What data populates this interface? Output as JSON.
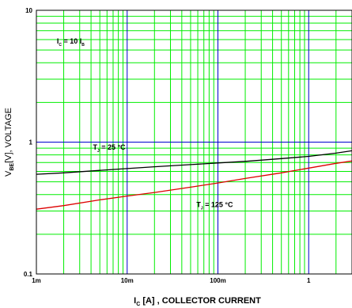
{
  "chart_data": {
    "type": "line",
    "x_scale": "log",
    "y_scale": "log",
    "xlim": [
      0.001,
      3
    ],
    "ylim": [
      0.1,
      10
    ],
    "grid": true,
    "legend": "none",
    "colors": {
      "minor_grid": "#00ee00",
      "major_grid": "#0000cc",
      "frame": "#000000"
    },
    "x_ticks": [
      {
        "value": 0.001,
        "label": "1m"
      },
      {
        "value": 0.01,
        "label": "10m"
      },
      {
        "value": 0.1,
        "label": "100m"
      },
      {
        "value": 1,
        "label": "1"
      }
    ],
    "y_ticks": [
      {
        "value": 0.1,
        "label": "0.1"
      },
      {
        "value": 1,
        "label": "1"
      },
      {
        "value": 10,
        "label": "10"
      }
    ],
    "xlabel": {
      "main": "I",
      "sub": "C",
      "rest": " [A] , COLLECTOR CURRENT"
    },
    "ylabel": {
      "main": "V",
      "sub": "BE",
      "rest": "[V], VOLTAGE"
    },
    "annotations": [
      {
        "main": "I",
        "sub": "C",
        "mid": " = 10 I",
        "sub2": "B",
        "x": 0.00168,
        "y": 5.6
      },
      {
        "main": "T",
        "sub": "J",
        "mid": " = 25 °C",
        "sub2": "",
        "x": 0.0042,
        "y": 0.875
      },
      {
        "main": "T",
        "sub": "J",
        "mid": " = 125 °C",
        "sub2": "",
        "x": 0.058,
        "y": 0.322
      }
    ],
    "series": [
      {
        "color": "#000000",
        "x": [
          0.001,
          0.002,
          0.005,
          0.01,
          0.02,
          0.05,
          0.1,
          0.2,
          0.5,
          1,
          2,
          3
        ],
        "y": [
          0.57,
          0.585,
          0.61,
          0.63,
          0.65,
          0.675,
          0.695,
          0.715,
          0.75,
          0.78,
          0.825,
          0.86
        ]
      },
      {
        "color": "#dd0000",
        "x": [
          0.001,
          0.002,
          0.005,
          0.01,
          0.02,
          0.05,
          0.1,
          0.2,
          0.5,
          1,
          2,
          3
        ],
        "y": [
          0.31,
          0.33,
          0.365,
          0.39,
          0.415,
          0.455,
          0.49,
          0.53,
          0.585,
          0.635,
          0.69,
          0.72
        ]
      }
    ]
  }
}
